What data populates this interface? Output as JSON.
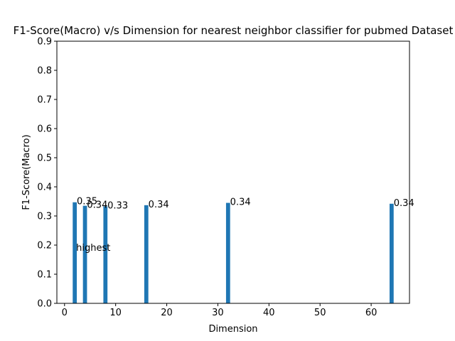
{
  "chart_data": {
    "type": "bar",
    "title": "F1-Score(Macro) v/s Dimension for nearest neighbor classifier for pubmed Dataset",
    "xlabel": "Dimension",
    "ylabel": "F1-Score(Macro)",
    "x": [
      2,
      4,
      8,
      16,
      32,
      64
    ],
    "values": [
      0.347,
      0.335,
      0.333,
      0.337,
      0.345,
      0.342
    ],
    "data_labels": [
      "0.35",
      "0.34",
      "0.33",
      "0.34",
      "0.34",
      "0.34"
    ],
    "annotation": {
      "text": "highest",
      "x": 2,
      "y": 0.18
    },
    "xlim": [
      -1.5,
      67.5
    ],
    "ylim": [
      0,
      0.9
    ],
    "xticks": [
      0,
      10,
      20,
      30,
      40,
      50,
      60
    ],
    "yticks": [
      0.0,
      0.1,
      0.2,
      0.3,
      0.4,
      0.5,
      0.6,
      0.7,
      0.8,
      0.9
    ],
    "bar_color": "#1f77b4",
    "grid": false,
    "legend": false
  }
}
